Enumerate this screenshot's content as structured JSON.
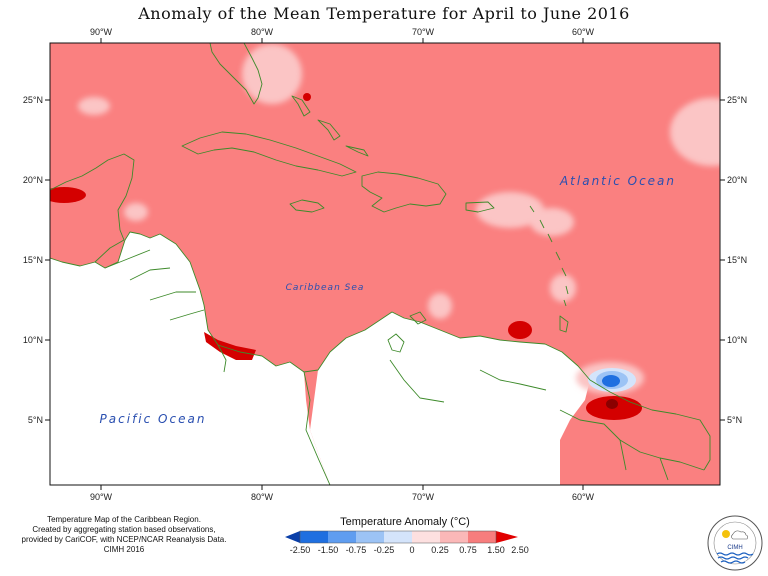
{
  "title": "Anomaly of the Mean Temperature for April to June 2016",
  "map": {
    "lon_ticks": [
      "90°W",
      "80°W",
      "70°W",
      "60°W"
    ],
    "lat_ticks": [
      "25°N",
      "20°N",
      "15°N",
      "10°N",
      "5°N"
    ],
    "labels": {
      "atlantic": "Atlantic Ocean",
      "pacific": "Pacific Ocean",
      "caribbean": "Caribbean Sea"
    },
    "colors": {
      "base_anomaly": "#fa8080",
      "light": "#fbc5c5",
      "strong": "#d40000",
      "land_outline": "#3d8a2a"
    }
  },
  "legend": {
    "title": "Temperature Anomaly (°C)",
    "zero_label": "0",
    "bins": [
      {
        "label": "-2.50",
        "color": "#0a3fa8"
      },
      {
        "label": "-1.50",
        "color": "#1f6fe0"
      },
      {
        "label": "-0.75",
        "color": "#5f9df0"
      },
      {
        "label": "-0.25",
        "color": "#9cc3f5"
      },
      {
        "label": "",
        "color": "#d4e4fb"
      },
      {
        "label": "0.25",
        "color": "#fde0e0"
      },
      {
        "label": "0.75",
        "color": "#fbb8b8"
      },
      {
        "label": "1.50",
        "color": "#f77d7d"
      },
      {
        "label": "2.50",
        "color": "#e10000"
      }
    ]
  },
  "credits": [
    "Temperature Map of the Caribbean Region.",
    "Created by aggregating station based observations,",
    "provided by CariCOF, with NCEP/NCAR Reanalysis Data.",
    "CIMH 2016"
  ],
  "logo": {
    "text": "CIMH"
  }
}
